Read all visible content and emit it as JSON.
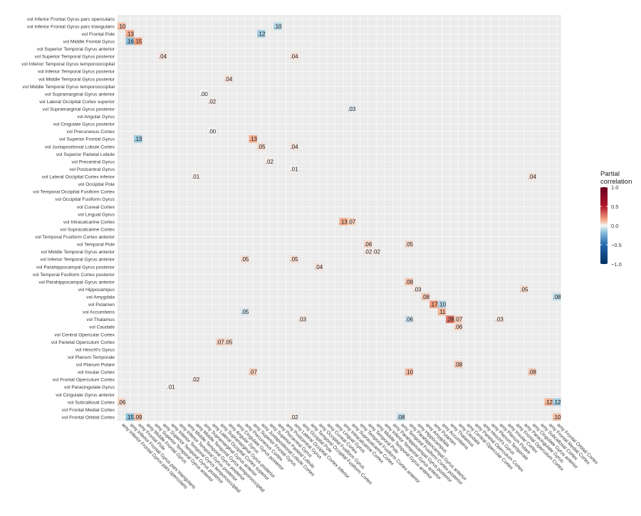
{
  "chart_data": {
    "type": "heatmap",
    "rows": [
      "vol Inferior Frontal Gyrus pars opercularis",
      "vol Inferior Frontal Gyrus pars triangularis",
      "vol Frontal Pole",
      "vol Middle Frontal Gyrus",
      "vol Superior Temporal Gyrus anterior",
      "vol Superior Temporal Gyrus posterior",
      "vol Inferior Temporal Gyrus temporooccipital",
      "vol Inferior Temporal Gyrus posterior",
      "vol Middle Temporal Gyrus posterior",
      "vol Middle Temporal Gyrus temporooccipital",
      "vol Supramarginal Gyrus anterior",
      "vol Lateral Occipital Cortex superior",
      "vol Supramarginal Gyrus posterior",
      "vol Angular Gyrus",
      "vol Cingulate Gyrus posterior",
      "vol Precuneous Cortex",
      "vol Superior Frontal Gyrus",
      "vol Juxtapositional Lobule Cortex",
      "vol Superior Parietal Lobule",
      "vol Precentral Gyrus",
      "vol Postcentral Gyrus",
      "vol Lateral Occipital Cortex inferior",
      "vol Occipital Pole",
      "vol Temporal Occipital Fusiform Cortex",
      "vol Occipital Fusiform Gyrus",
      "vol Cuneal Cortex",
      "vol Lingual Gyrus",
      "vol Intracalcarine Cortex",
      "vol Supracalcarine Cortex",
      "vol Temporal Fusiform Cortex anterior",
      "vol Temporal Pole",
      "vol Middle Temporal Gyrus anterior",
      "vol Inferior Temporal Gyrus anterior",
      "vol Parahippocampal Gyrus posterior",
      "vol Temporal Fusiform Cortex posterior",
      "vol Parahippocampal Gyrus anterior",
      "vol Hippocampus",
      "vol Amygdala",
      "vol Putamen",
      "vol Accumbens",
      "vol Thalamus",
      "vol Caudate",
      "vol Central Opercular Cortex",
      "vol Parietal Operculum Cortex",
      "vol Heschl's Gyrus",
      "vol Planum Temporale",
      "vol Planum Polare",
      "vol Insular Cortex",
      "vol Frontal Operculum Cortex",
      "vol Paracingulate Gyrus",
      "vol Cingulate Gyrus anterior",
      "vol Subcallosal Cortex",
      "vol Frontal Medial Cortex",
      "vol Frontal Orbital Cortex"
    ],
    "columns": [
      "amy Inferior Frontal Gyrus pars opercularis",
      "amy Inferior Frontal Gyrus pars triangularis",
      "amy Frontal Pole",
      "amy Middle Frontal Gyrus",
      "amy Superior Temporal Gyrus anterior",
      "amy Superior Temporal Gyrus posterior",
      "amy Inferior Temporal Gyrus temporooccipital",
      "amy Inferior Temporal Gyrus posterior",
      "amy Middle Temporal Gyrus posterior",
      "amy Middle Temporal Gyrus temporooccipital",
      "amy Supramarginal Gyrus anterior",
      "amy Lateral Occipital Cortex superior",
      "amy Supramarginal Gyrus posterior",
      "amy Angular Gyrus",
      "amy Cingulate Gyrus posterior",
      "amy Precuneous Cortex",
      "amy Superior Frontal Gyrus",
      "amy Juxtapositional Lobule Cortex",
      "amy Superior Parietal Lobule",
      "amy Precentral Gyrus",
      "amy Postcentral Gyrus",
      "amy Lateral Occipital Cortex inferior",
      "amy Occipital Pole",
      "amy Temporal Occipital Fusiform Cortex",
      "amy Occipital Fusiform Gyrus",
      "amy Cuneal Cortex",
      "amy Lingual Gyrus",
      "amy Intracalcarine Cortex",
      "amy Supracalcarine Cortex",
      "amy Temporal Fusiform Cortex anterior",
      "amy Temporal Pole",
      "amy Middle Temporal Gyrus anterior",
      "amy Inferior Temporal Gyrus anterior",
      "amy Parahippocampal Gyrus posterior",
      "amy Temporal Fusiform Cortex posterior",
      "amy Parahippocampal Gyrus anterior",
      "amy Hippocampus",
      "amy Amygdala",
      "amy Putamen",
      "amy Accumbens",
      "amy Thalamus",
      "amy Caudate",
      "amy Central Opercular Cortex",
      "amy Parietal Operculum Cortex",
      "amy Heschl's Gyrus",
      "amy Planum Temporale",
      "amy Planum Polare",
      "amy Insular Cortex",
      "amy Frontal Operculum Cortex",
      "amy Paracingulate Gyrus",
      "amy Cingulate Gyrus anterior",
      "amy Subcallosal Cortex",
      "amy Frontal Medial Cortex",
      "amy Frontal Orbital Cortex"
    ],
    "cells": [
      {
        "row": 1,
        "col": 0,
        "value": 0.1,
        "label": ".10"
      },
      {
        "row": 1,
        "col": 19,
        "value": -0.1,
        "label": ".10"
      },
      {
        "row": 2,
        "col": 1,
        "value": 0.13,
        "label": ".13"
      },
      {
        "row": 2,
        "col": 17,
        "value": -0.12,
        "label": ".12"
      },
      {
        "row": 3,
        "col": 1,
        "value": -0.16,
        "label": ".16"
      },
      {
        "row": 3,
        "col": 2,
        "value": 0.15,
        "label": ".15"
      },
      {
        "row": 5,
        "col": 5,
        "value": 0.04,
        "label": ".04"
      },
      {
        "row": 5,
        "col": 21,
        "value": 0.04,
        "label": ".04"
      },
      {
        "row": 8,
        "col": 13,
        "value": 0.04,
        "label": ".04"
      },
      {
        "row": 10,
        "col": 10,
        "value": 0.0,
        "label": ".00"
      },
      {
        "row": 11,
        "col": 11,
        "value": 0.02,
        "label": ".02"
      },
      {
        "row": 12,
        "col": 28,
        "value": -0.03,
        "label": ".03"
      },
      {
        "row": 15,
        "col": 11,
        "value": 0.0,
        "label": ".00"
      },
      {
        "row": 16,
        "col": 2,
        "value": -0.13,
        "label": ".13"
      },
      {
        "row": 16,
        "col": 16,
        "value": 0.13,
        "label": ".13"
      },
      {
        "row": 17,
        "col": 17,
        "value": 0.05,
        "label": ".05"
      },
      {
        "row": 17,
        "col": 21,
        "value": 0.04,
        "label": ".04"
      },
      {
        "row": 19,
        "col": 18,
        "value": 0.02,
        "label": ".02"
      },
      {
        "row": 20,
        "col": 21,
        "value": 0.01,
        "label": ".01"
      },
      {
        "row": 21,
        "col": 9,
        "value": 0.01,
        "label": ".01"
      },
      {
        "row": 21,
        "col": 50,
        "value": 0.04,
        "label": ".04"
      },
      {
        "row": 27,
        "col": 27,
        "value": 0.13,
        "label": ".13"
      },
      {
        "row": 27,
        "col": 28,
        "value": 0.07,
        "label": ".07"
      },
      {
        "row": 30,
        "col": 30,
        "value": 0.06,
        "label": ".06"
      },
      {
        "row": 30,
        "col": 35,
        "value": 0.05,
        "label": ".05"
      },
      {
        "row": 31,
        "col": 30,
        "value": 0.02,
        "label": ".02"
      },
      {
        "row": 31,
        "col": 31,
        "value": 0.02,
        "label": ".02"
      },
      {
        "row": 32,
        "col": 15,
        "value": 0.05,
        "label": ".05"
      },
      {
        "row": 32,
        "col": 21,
        "value": 0.05,
        "label": ".05"
      },
      {
        "row": 33,
        "col": 24,
        "value": 0.04,
        "label": ".04"
      },
      {
        "row": 35,
        "col": 35,
        "value": 0.09,
        "label": ".09"
      },
      {
        "row": 36,
        "col": 36,
        "value": 0.03,
        "label": ".03"
      },
      {
        "row": 36,
        "col": 49,
        "value": 0.05,
        "label": ".05"
      },
      {
        "row": 37,
        "col": 37,
        "value": 0.08,
        "label": ".08"
      },
      {
        "row": 37,
        "col": 53,
        "value": -0.08,
        "label": ".08"
      },
      {
        "row": 38,
        "col": 38,
        "value": 0.17,
        "label": ".17"
      },
      {
        "row": 38,
        "col": 39,
        "value": -0.1,
        "label": ".10"
      },
      {
        "row": 39,
        "col": 39,
        "value": 0.11,
        "label": ".11"
      },
      {
        "row": 39,
        "col": 15,
        "value": -0.05,
        "label": ".05"
      },
      {
        "row": 40,
        "col": 22,
        "value": 0.03,
        "label": ".03"
      },
      {
        "row": 40,
        "col": 35,
        "value": -0.06,
        "label": ".06"
      },
      {
        "row": 40,
        "col": 40,
        "value": 0.28,
        "label": ".28"
      },
      {
        "row": 40,
        "col": 41,
        "value": 0.07,
        "label": ".07"
      },
      {
        "row": 40,
        "col": 46,
        "value": 0.03,
        "label": ".03"
      },
      {
        "row": 41,
        "col": 41,
        "value": 0.06,
        "label": ".06"
      },
      {
        "row": 43,
        "col": 12,
        "value": 0.07,
        "label": ".07"
      },
      {
        "row": 43,
        "col": 13,
        "value": 0.05,
        "label": ".05"
      },
      {
        "row": 46,
        "col": 41,
        "value": 0.08,
        "label": ".08"
      },
      {
        "row": 47,
        "col": 16,
        "value": 0.07,
        "label": ".07"
      },
      {
        "row": 47,
        "col": 35,
        "value": 0.1,
        "label": ".10"
      },
      {
        "row": 47,
        "col": 50,
        "value": 0.08,
        "label": ".08"
      },
      {
        "row": 48,
        "col": 9,
        "value": 0.02,
        "label": ".02"
      },
      {
        "row": 49,
        "col": 6,
        "value": 0.01,
        "label": ".01"
      },
      {
        "row": 51,
        "col": 0,
        "value": 0.06,
        "label": ".06"
      },
      {
        "row": 51,
        "col": 52,
        "value": 0.12,
        "label": ".12"
      },
      {
        "row": 51,
        "col": 53,
        "value": -0.12,
        "label": ".12"
      },
      {
        "row": 53,
        "col": 1,
        "value": -0.15,
        "label": ".15"
      },
      {
        "row": 53,
        "col": 2,
        "value": 0.09,
        "label": ".09"
      },
      {
        "row": 53,
        "col": 21,
        "value": 0.02,
        "label": ".02"
      },
      {
        "row": 53,
        "col": 34,
        "value": -0.08,
        "label": ".08"
      },
      {
        "row": 53,
        "col": 53,
        "value": 0.1,
        "label": ".10"
      }
    ],
    "legend": {
      "title": "Partial\ncorrelation",
      "ticks": [
        "1.0",
        "0.5",
        "0.0",
        "−0.5",
        "−1.0"
      ],
      "tick_values": [
        1.0,
        0.5,
        0.0,
        -0.5,
        -1.0
      ],
      "range": [
        -1,
        1
      ],
      "colors": {
        "low": "#053061",
        "mid_low": "#92c5de",
        "mid": "#f7f7f7",
        "mid_high": "#f4a582",
        "high": "#67001f"
      }
    },
    "panel_background": "#ebebeb",
    "grid": true
  }
}
